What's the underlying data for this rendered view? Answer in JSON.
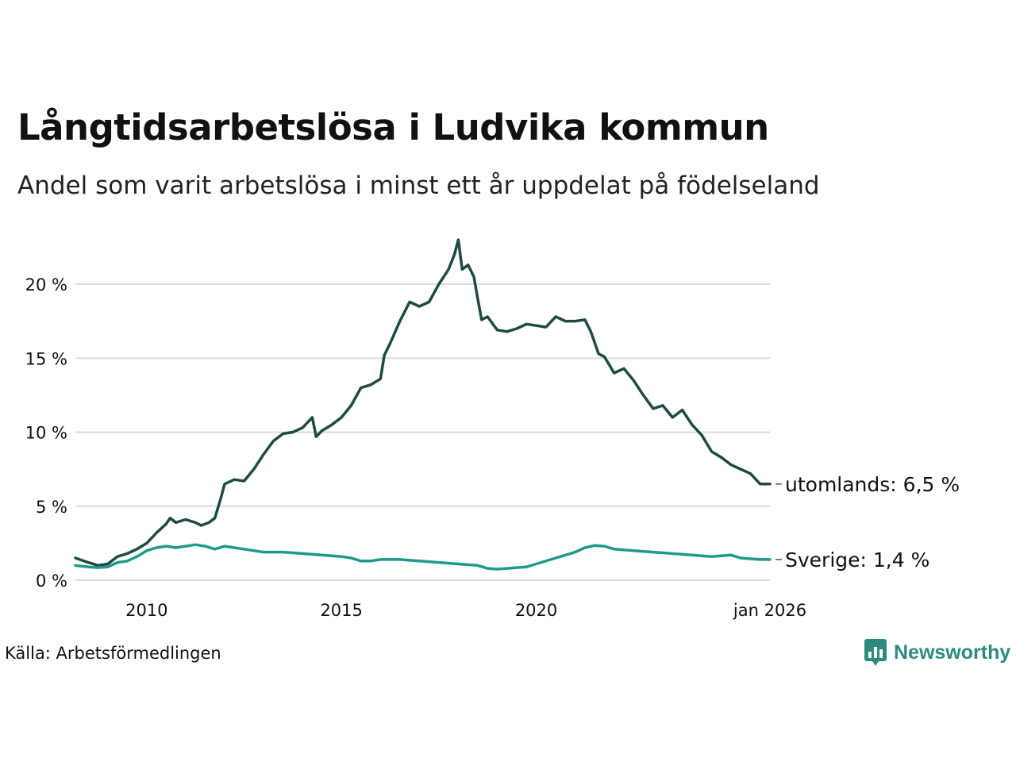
{
  "header": {
    "title": "Långtidsarbetslösa i Ludvika kommun",
    "subtitle": "Andel som varit arbetslösa i minst ett år uppdelat på födelseland"
  },
  "footer": {
    "source": "Källa: Arbetsförmedlingen",
    "brand": "Newsworthy"
  },
  "colors": {
    "utomlands": "#1e4a43",
    "sverige": "#1f9a8a",
    "grid": "#dddddd",
    "brand": "#2b8b7f"
  },
  "chart_data": {
    "type": "line",
    "title": "Långtidsarbetslösa i Ludvika kommun",
    "subtitle": "Andel som varit arbetslösa i minst ett år uppdelat på födelseland",
    "x_range": [
      2008.17,
      2026.0
    ],
    "ylim": [
      0,
      23
    ],
    "y_ticks": [
      0,
      5,
      10,
      15,
      20
    ],
    "y_tick_labels": [
      "0 %",
      "5 %",
      "10 %",
      "15 %",
      "20 %"
    ],
    "x_ticks": [
      2010,
      2015,
      2020,
      2026
    ],
    "x_tick_labels": [
      "2010",
      "2015",
      "2020",
      "jan 2026"
    ],
    "grid": true,
    "series": [
      {
        "name": "utomlands",
        "end_label": "utomlands: 6,5 %",
        "points": [
          [
            2008.17,
            1.5
          ],
          [
            2008.5,
            1.2
          ],
          [
            2008.75,
            1.0
          ],
          [
            2009.0,
            1.1
          ],
          [
            2009.25,
            1.6
          ],
          [
            2009.5,
            1.8
          ],
          [
            2009.75,
            2.1
          ],
          [
            2010.0,
            2.5
          ],
          [
            2010.25,
            3.2
          ],
          [
            2010.5,
            3.8
          ],
          [
            2010.6,
            4.2
          ],
          [
            2010.75,
            3.9
          ],
          [
            2011.0,
            4.1
          ],
          [
            2011.25,
            3.9
          ],
          [
            2011.4,
            3.7
          ],
          [
            2011.6,
            3.9
          ],
          [
            2011.75,
            4.2
          ],
          [
            2011.9,
            5.5
          ],
          [
            2012.0,
            6.5
          ],
          [
            2012.25,
            6.8
          ],
          [
            2012.5,
            6.7
          ],
          [
            2012.75,
            7.5
          ],
          [
            2013.0,
            8.5
          ],
          [
            2013.25,
            9.4
          ],
          [
            2013.5,
            9.9
          ],
          [
            2013.75,
            10.0
          ],
          [
            2014.0,
            10.3
          ],
          [
            2014.25,
            11.0
          ],
          [
            2014.35,
            9.7
          ],
          [
            2014.5,
            10.1
          ],
          [
            2014.75,
            10.5
          ],
          [
            2015.0,
            11.0
          ],
          [
            2015.25,
            11.8
          ],
          [
            2015.5,
            13.0
          ],
          [
            2015.75,
            13.2
          ],
          [
            2016.0,
            13.6
          ],
          [
            2016.1,
            15.2
          ],
          [
            2016.25,
            16.0
          ],
          [
            2016.5,
            17.5
          ],
          [
            2016.75,
            18.8
          ],
          [
            2017.0,
            18.5
          ],
          [
            2017.25,
            18.8
          ],
          [
            2017.5,
            20.0
          ],
          [
            2017.75,
            21.0
          ],
          [
            2017.9,
            22.0
          ],
          [
            2018.0,
            23.0
          ],
          [
            2018.1,
            21.0
          ],
          [
            2018.25,
            21.3
          ],
          [
            2018.4,
            20.5
          ],
          [
            2018.5,
            19.0
          ],
          [
            2018.6,
            17.6
          ],
          [
            2018.75,
            17.8
          ],
          [
            2019.0,
            16.9
          ],
          [
            2019.25,
            16.8
          ],
          [
            2019.5,
            17.0
          ],
          [
            2019.75,
            17.3
          ],
          [
            2020.0,
            17.2
          ],
          [
            2020.25,
            17.1
          ],
          [
            2020.5,
            17.8
          ],
          [
            2020.75,
            17.5
          ],
          [
            2021.0,
            17.5
          ],
          [
            2021.25,
            17.6
          ],
          [
            2021.4,
            16.8
          ],
          [
            2021.6,
            15.3
          ],
          [
            2021.75,
            15.1
          ],
          [
            2022.0,
            14.0
          ],
          [
            2022.25,
            14.3
          ],
          [
            2022.5,
            13.5
          ],
          [
            2022.75,
            12.5
          ],
          [
            2023.0,
            11.6
          ],
          [
            2023.25,
            11.8
          ],
          [
            2023.5,
            11.0
          ],
          [
            2023.75,
            11.5
          ],
          [
            2024.0,
            10.5
          ],
          [
            2024.25,
            9.8
          ],
          [
            2024.5,
            8.7
          ],
          [
            2024.75,
            8.3
          ],
          [
            2025.0,
            7.8
          ],
          [
            2025.25,
            7.5
          ],
          [
            2025.5,
            7.2
          ],
          [
            2025.75,
            6.5
          ],
          [
            2026.0,
            6.5
          ]
        ]
      },
      {
        "name": "Sverige",
        "end_label": "Sverige: 1,4 %",
        "points": [
          [
            2008.17,
            1.0
          ],
          [
            2008.5,
            0.9
          ],
          [
            2008.75,
            0.85
          ],
          [
            2009.0,
            0.9
          ],
          [
            2009.25,
            1.2
          ],
          [
            2009.5,
            1.3
          ],
          [
            2009.75,
            1.6
          ],
          [
            2010.0,
            2.0
          ],
          [
            2010.25,
            2.2
          ],
          [
            2010.5,
            2.3
          ],
          [
            2010.75,
            2.2
          ],
          [
            2011.0,
            2.3
          ],
          [
            2011.25,
            2.4
          ],
          [
            2011.5,
            2.3
          ],
          [
            2011.75,
            2.1
          ],
          [
            2012.0,
            2.3
          ],
          [
            2012.25,
            2.2
          ],
          [
            2012.5,
            2.1
          ],
          [
            2012.75,
            2.0
          ],
          [
            2013.0,
            1.9
          ],
          [
            2013.5,
            1.9
          ],
          [
            2014.0,
            1.8
          ],
          [
            2014.5,
            1.7
          ],
          [
            2015.0,
            1.6
          ],
          [
            2015.25,
            1.5
          ],
          [
            2015.5,
            1.3
          ],
          [
            2015.75,
            1.3
          ],
          [
            2016.0,
            1.4
          ],
          [
            2016.5,
            1.4
          ],
          [
            2017.0,
            1.3
          ],
          [
            2017.5,
            1.2
          ],
          [
            2018.0,
            1.1
          ],
          [
            2018.5,
            1.0
          ],
          [
            2018.75,
            0.8
          ],
          [
            2019.0,
            0.75
          ],
          [
            2019.25,
            0.8
          ],
          [
            2019.5,
            0.85
          ],
          [
            2019.75,
            0.9
          ],
          [
            2020.0,
            1.1
          ],
          [
            2020.5,
            1.5
          ],
          [
            2020.75,
            1.7
          ],
          [
            2021.0,
            1.9
          ],
          [
            2021.25,
            2.2
          ],
          [
            2021.5,
            2.35
          ],
          [
            2021.75,
            2.3
          ],
          [
            2022.0,
            2.1
          ],
          [
            2022.5,
            2.0
          ],
          [
            2023.0,
            1.9
          ],
          [
            2023.5,
            1.8
          ],
          [
            2024.0,
            1.7
          ],
          [
            2024.5,
            1.6
          ],
          [
            2025.0,
            1.7
          ],
          [
            2025.25,
            1.5
          ],
          [
            2025.5,
            1.45
          ],
          [
            2025.75,
            1.4
          ],
          [
            2026.0,
            1.4
          ]
        ]
      }
    ]
  }
}
